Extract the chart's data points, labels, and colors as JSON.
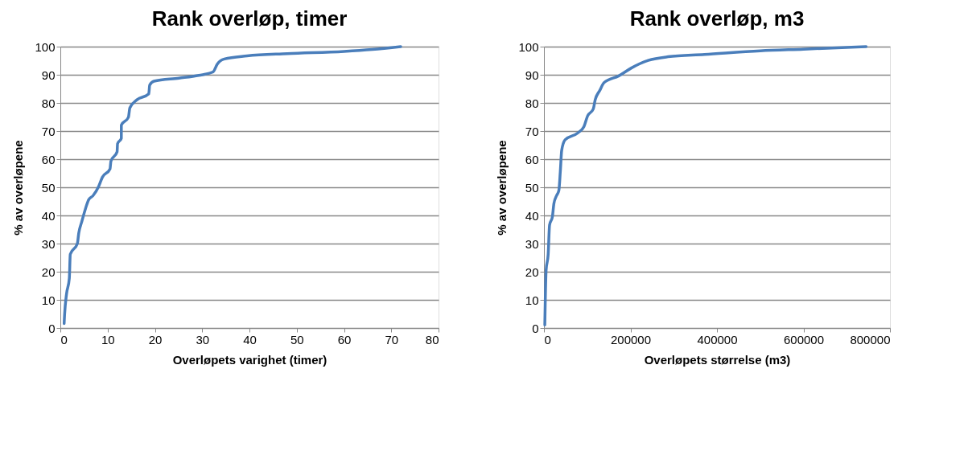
{
  "chart_data": [
    {
      "type": "line",
      "title": "Rank overløp, timer",
      "xlabel": "Overløpets varighet (timer)",
      "ylabel": "% av overløpene",
      "xlim": [
        0,
        80
      ],
      "xticks": [
        0,
        10,
        20,
        30,
        40,
        50,
        60,
        70,
        80
      ],
      "ylim": [
        0,
        100
      ],
      "yticks": [
        0,
        10,
        20,
        30,
        40,
        50,
        60,
        70,
        80,
        90,
        100
      ],
      "grid": "y",
      "line_style": "solid",
      "marker": "none",
      "series": [
        {
          "color": "#4a7ebb",
          "x": [
            0.8,
            0.9,
            1.3,
            1.9,
            2.1,
            3.6,
            3.9,
            4.5,
            5.3,
            6.0,
            6.9,
            8.1,
            8.9,
            10.5,
            10.7,
            12.0,
            12.1,
            12.9,
            12.9,
            14.4,
            14.7,
            16.2,
            18.7,
            18.9,
            19.8,
            25.1,
            29.3,
            32.3,
            33.2,
            34.7,
            39.5,
            48,
            60,
            66,
            72
          ],
          "values": [
            1.6,
            4.9,
            12,
            17.7,
            26.2,
            30,
            33.8,
            37.6,
            42.3,
            45.6,
            47,
            50.3,
            53.6,
            56.5,
            59.3,
            62.6,
            65.5,
            67.4,
            72.1,
            74.9,
            78.2,
            81.1,
            83.2,
            86.3,
            87.7,
            88.8,
            89.8,
            91,
            93.8,
            95.6,
            96.7,
            97.5,
            98.3,
            99,
            100
          ]
        }
      ]
    },
    {
      "type": "line",
      "title": "Rank overløp, m3",
      "xlabel": "Overløpets størrelse (m3)",
      "ylabel": "% av overløpene",
      "xlim": [
        0,
        800000
      ],
      "xticks": [
        0,
        200000,
        400000,
        600000,
        800000
      ],
      "ylim": [
        0,
        100
      ],
      "yticks": [
        0,
        10,
        20,
        30,
        40,
        50,
        60,
        70,
        80,
        90,
        100
      ],
      "grid": "y",
      "line_style": "solid",
      "marker": "none",
      "series": [
        {
          "color": "#4a7ebb",
          "x": [
            2000,
            3000,
            5000,
            9800,
            13000,
            19500,
            23000,
            29000,
            34500,
            37800,
            41000,
            48900,
            78000,
            92500,
            101000,
            114000,
            118500,
            129000,
            139000,
            173000,
            202000,
            241000,
            287000,
            371000,
            500000,
            600000,
            745000
          ],
          "values": [
            1.1,
            9.2,
            20.5,
            26.2,
            36.6,
            39.5,
            44.2,
            47,
            48.9,
            55.5,
            63.1,
            66.9,
            69.3,
            71.6,
            75.4,
            77.8,
            81.1,
            84.4,
            87.2,
            89.6,
            92.4,
            95.1,
            96.4,
            97.2,
            98.5,
            99.1,
            100
          ]
        }
      ]
    }
  ]
}
